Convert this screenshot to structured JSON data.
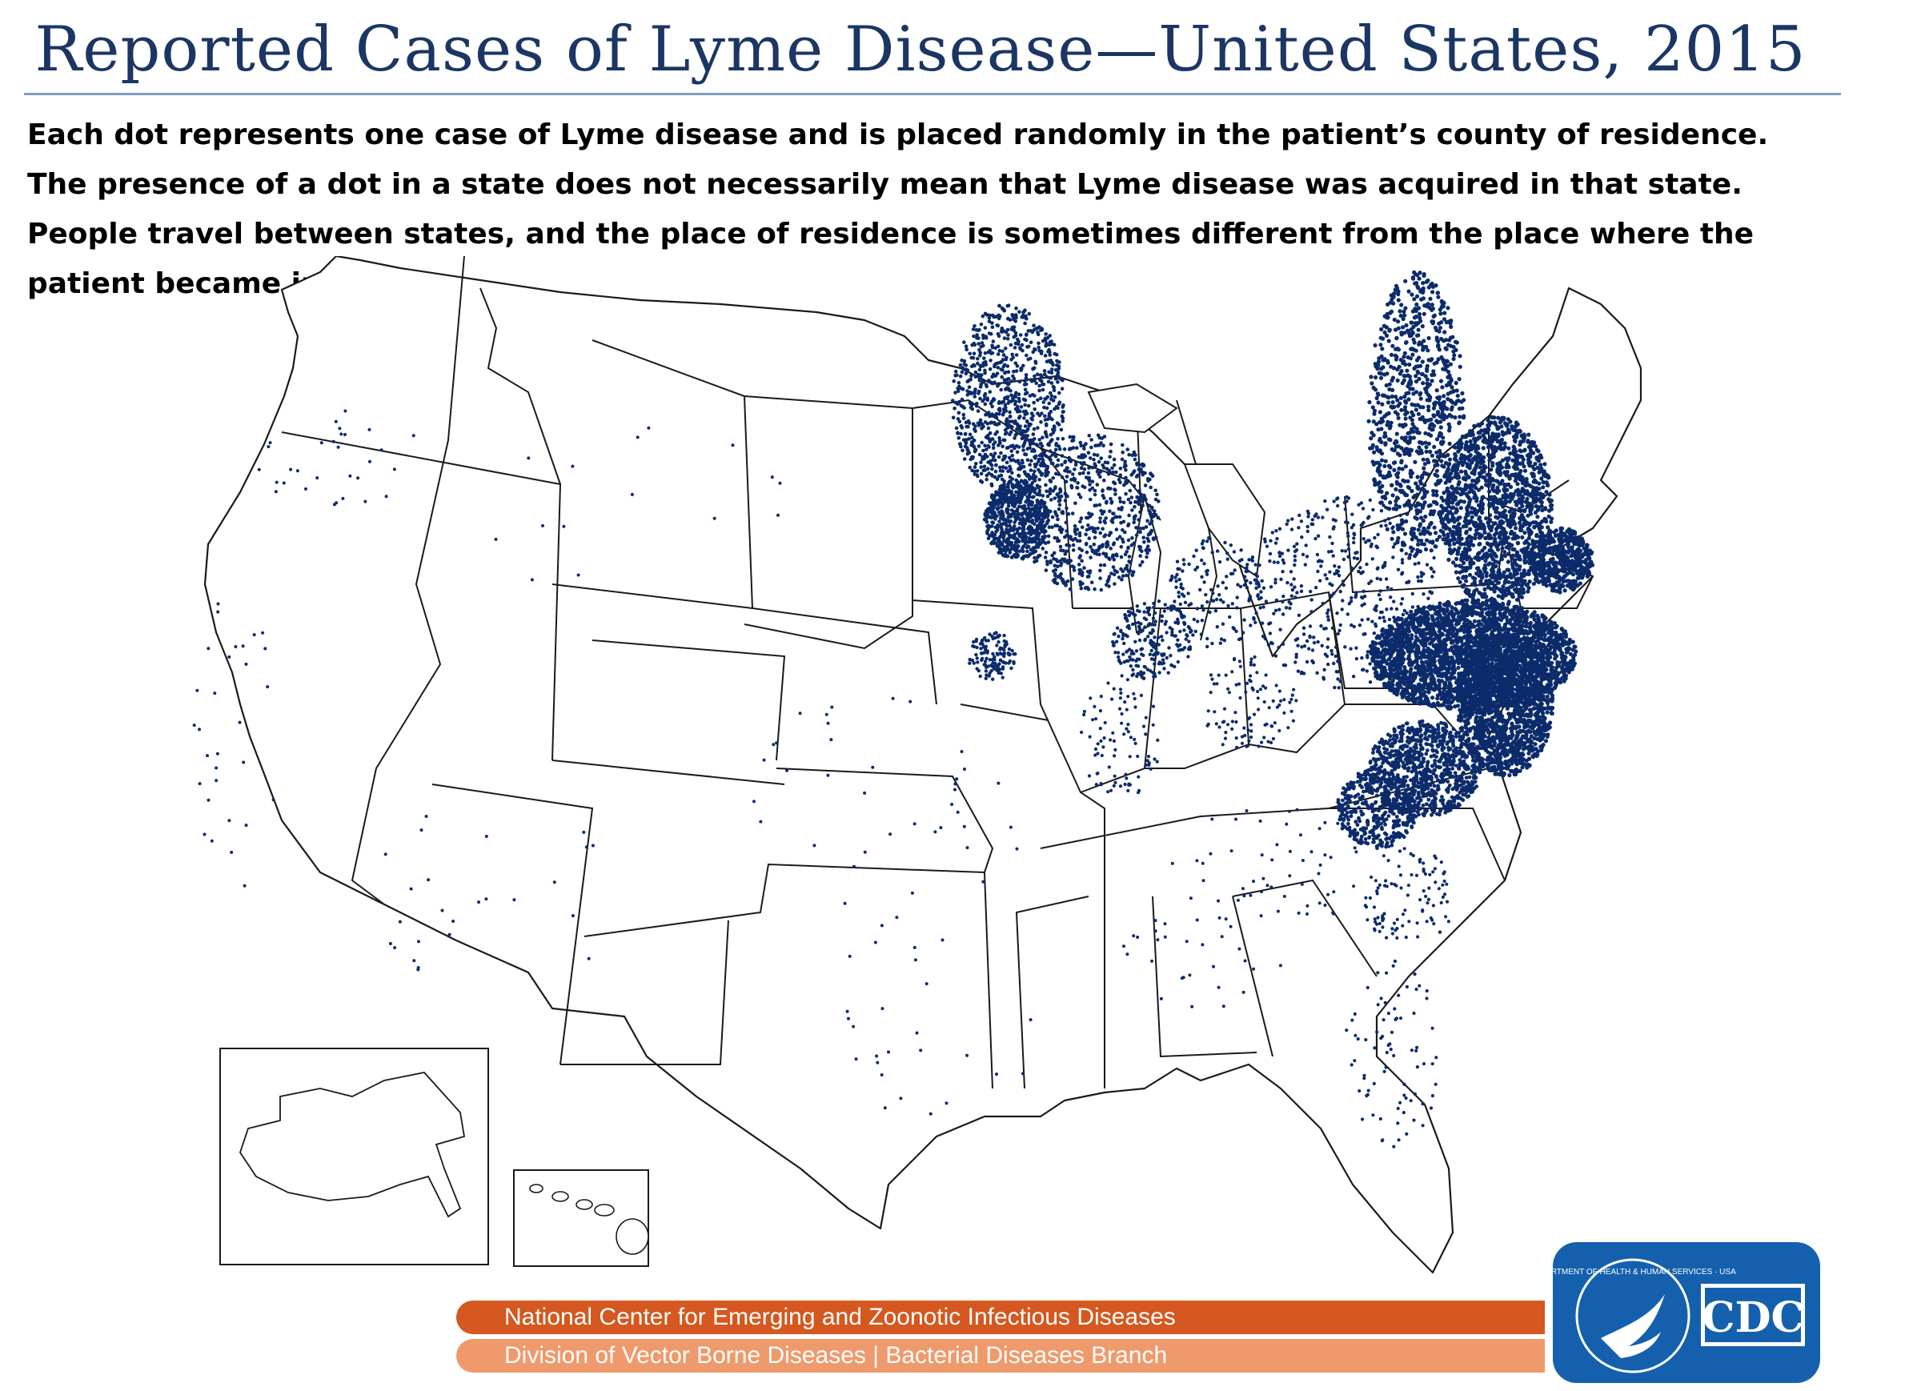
{
  "header": {
    "title": "Reported Cases of Lyme Disease—United States, 2015",
    "description": "Each dot represents one case of Lyme disease and is placed randomly in the patient’s county of residence. The presence of a dot in a state does not necessarily mean that Lyme disease was acquired in that state. People travel between states, and the place of residence is sometimes different from the place where the patient became infected."
  },
  "map": {
    "dot_color": "#0b2b6b",
    "border_color": "#1a1a1a",
    "insets": [
      "alaska",
      "hawaii"
    ]
  },
  "footer": {
    "center_name": "National Center for Emerging and Zoonotic Infectious Diseases",
    "division_name": "Division of Vector Borne Diseases | Bacterial Diseases Branch",
    "center_color": "#d4581f",
    "division_color": "#ef9a6c"
  },
  "logo": {
    "agency": "CDC",
    "seal_text": "DEPARTMENT OF HEALTH & HUMAN SERVICES · USA",
    "background": "#1560ad"
  }
}
